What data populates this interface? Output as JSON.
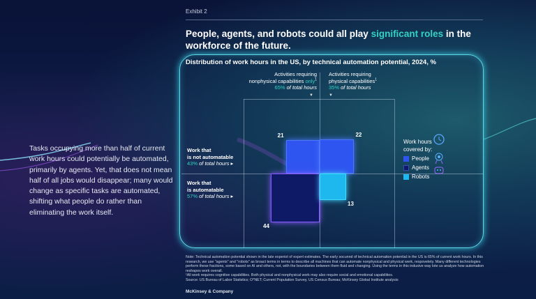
{
  "exhibit": "Exhibit 2",
  "title": {
    "pre": "People, agents, and robots could all play ",
    "highlight": "significant roles",
    "post": " in the workforce of the future."
  },
  "side_text": "Tasks occupying more than half of current work hours could potentially be automated, primarily by agents. Yet, that does not mean half of all jobs would disappear; many would change as specific tasks are automated, shifting what people do rather than eliminating the work itself.",
  "colors": {
    "accent": "#36d1c4",
    "people": "#2f55f0",
    "agents": "#0f1a66",
    "robots": "#1fb8ee",
    "frame": "#5fd6e6"
  },
  "chart_data": {
    "type": "heatmap",
    "title": "Distribution of work hours in the US, by technical automation potential, 2024, %",
    "columns": [
      {
        "line1": "Activities requiring",
        "line2": "nonphysical capabilities ",
        "line2_accent": "only",
        "sup": "1",
        "pct": "65%",
        "pct_label": " of total hours"
      },
      {
        "line1": "Activities requiring",
        "line2": "physical capabilities",
        "line2_accent": "",
        "sup": "1",
        "pct": "35%",
        "pct_label": " of total hours"
      }
    ],
    "rows": [
      {
        "line1": "Work that",
        "line2": "is not automatable",
        "pct": "43%",
        "pct_label": " of total hours"
      },
      {
        "line1": "Work that",
        "line2": "is automatable",
        "pct": "57%",
        "pct_label": " of total hours"
      }
    ],
    "cells": [
      {
        "row": 0,
        "col": 0,
        "value": 21,
        "series": "People"
      },
      {
        "row": 0,
        "col": 1,
        "value": 22,
        "series": "People"
      },
      {
        "row": 1,
        "col": 0,
        "value": 44,
        "series": "Agents"
      },
      {
        "row": 1,
        "col": 1,
        "value": 13,
        "series": "Robots"
      }
    ],
    "legend": {
      "title": "Work hours covered by:",
      "items": [
        "People",
        "Agents",
        "Robots"
      ],
      "icons": [
        "clock-icon",
        "badge-icon",
        "robot-icon"
      ]
    }
  },
  "notes": [
    "Note: Technical automation potential shown in the late experiot of expert estimates. The early socunnd of technical automation potential in the US is 65% of current work hours. In this research, we use \"agents\" and \"robots\" as broact terms in terms to describe all machines that can automate nonphysical and physical werk, respovelety. Many different technologies perform these fractions, some based on AI and others, not, with the boundaries between them fluid and changing. Using the terms in this indusive way lote us analyze how automation reshapes work overall.",
    "¹All work requires cognitive capabilities. Both physical and nonphysical work may also require social and emotional capabilities.",
    "Source: US Bureau of Labor Statistics; O*NET; Current Population Survey, US Census Bureau; McKinsey Global Institute analysis"
  ],
  "brand": "McKinsey & Company"
}
